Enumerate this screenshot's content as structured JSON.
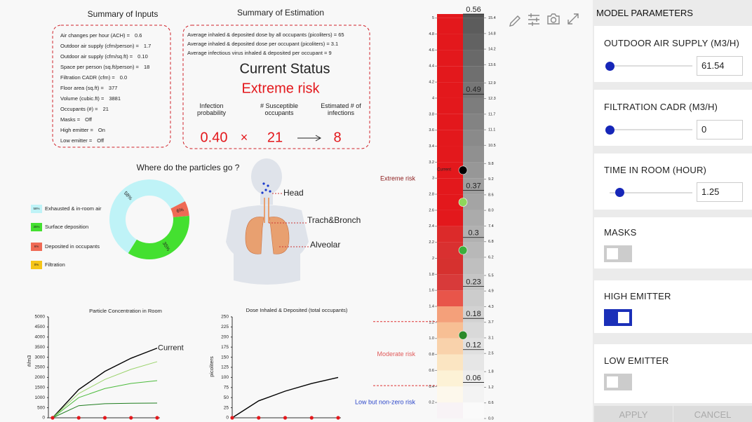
{
  "inputs": {
    "title": "Summary of Inputs",
    "items": [
      {
        "label": "Air changes per hour (ACH) =",
        "value": "0.6"
      },
      {
        "label": "Outdoor air supply (cfm/person) =",
        "value": "1.7"
      },
      {
        "label": "Outdoor air supply (cfm/sq.ft) =",
        "value": "0.10"
      },
      {
        "label": "Space per person (sq.ft/person) =",
        "value": "18"
      },
      {
        "label": "Filtration CADR (cfm) =",
        "value": "0.0"
      },
      {
        "label": "Floor area (sq.ft) =",
        "value": "377"
      },
      {
        "label": "Volume (cubic.ft) =",
        "value": "3881"
      },
      {
        "label": "Occupants (#) =",
        "value": "21"
      },
      {
        "label": "Masks =",
        "value": "Off"
      },
      {
        "label": "High emitter =",
        "value": "On"
      },
      {
        "label": "Low emitter =",
        "value": "Off"
      }
    ]
  },
  "estimation": {
    "title": "Summary of Estimation",
    "lines": [
      "Average inhaled & deposited dose by all occupants (picoliters) = 65",
      "Average inhaled & deposited dose per occupant (picoliters) = 3.1",
      "Average infectious virus inhaled & deposited per occupant = 9"
    ],
    "status_title": "Current Status",
    "status": "Extreme risk",
    "headers": [
      "Infection probability",
      "# Susceptible occupants",
      "Estimated # of infections"
    ],
    "probability": "0.40",
    "operator": "×",
    "occupants": "21",
    "infections": "8"
  },
  "diagram": {
    "labels": [
      "Head",
      "Trach&Bronch",
      "Alveolar"
    ]
  },
  "chart_data": [
    {
      "type": "pie",
      "title": "Where do the particles go ?",
      "hole": true,
      "categories": [
        "Exhausted & in-room air",
        "Surface deposition",
        "Deposited in occupants",
        "Filtration"
      ],
      "values": [
        58,
        35,
        6,
        0
      ],
      "value_labels": [
        "58%",
        "35%",
        "6%",
        "0%"
      ],
      "colors": [
        "#bff3f7",
        "#44e030",
        "#ef6a55",
        "#f5c518"
      ]
    },
    {
      "type": "line",
      "title": "Particle Concentration in Room",
      "ylabel": "#/m3",
      "categories": [
        null,
        null,
        null,
        null,
        null
      ],
      "ylim": [
        0,
        5000
      ],
      "yticks": [
        0,
        500,
        1000,
        1500,
        2000,
        2500,
        3000,
        3500,
        4000,
        4500,
        5000
      ],
      "series": [
        {
          "name": "Current",
          "color": "#000000",
          "values": [
            0,
            1400,
            2300,
            2950,
            3450
          ]
        },
        {
          "color": "#9ad36b",
          "values": [
            0,
            1200,
            1900,
            2400,
            2780
          ]
        },
        {
          "color": "#4cbb3c",
          "values": [
            0,
            1000,
            1450,
            1700,
            1840
          ]
        },
        {
          "color": "#1e7d1e",
          "values": [
            0,
            600,
            700,
            720,
            730
          ]
        }
      ]
    },
    {
      "type": "line",
      "title": "Dose Inhaled & Deposited (total occupants)",
      "ylabel": "picoliters",
      "categories": [
        null,
        null,
        null,
        null,
        null
      ],
      "ylim": [
        0,
        250
      ],
      "yticks": [
        0,
        25,
        50,
        75,
        100,
        125,
        150,
        175,
        200,
        225,
        250
      ],
      "series": [
        {
          "color": "#000000",
          "values": [
            0,
            42,
            66,
            85,
            100
          ]
        }
      ]
    },
    {
      "type": "risk-scale",
      "ylim": [
        0,
        5.05
      ],
      "yticks": [
        0.2,
        0.4,
        0.6,
        0.8,
        {
          "value": 1,
          "label": "1.0"
        },
        1.2,
        1.4,
        1.6,
        1.8,
        2,
        2.2,
        2.4,
        2.6,
        2.8,
        3,
        3.2,
        3.4,
        3.6,
        3.8,
        4,
        4.2,
        4.4,
        4.6,
        4.8,
        5
      ],
      "y2lim": [
        0,
        15.55
      ],
      "y2ticks": [
        {
          "value": 0,
          "label": "0.0"
        },
        0.6,
        1.2,
        1.8,
        2.5,
        3.1,
        3.7,
        4.3,
        4.9,
        5.5,
        6.2,
        6.8,
        7.4,
        {
          "value": 8,
          "label": "8.0"
        },
        8.6,
        9.2,
        9.8,
        10.5,
        11.1,
        11.7,
        12.3,
        12.9,
        13.6,
        14.2,
        14.8,
        15.4
      ],
      "cell_colors": [
        "#f8f3f6",
        "#fdf8ec",
        "#fdf2d6",
        "#fbe5c2",
        "#f9d2ab",
        "#f7bf94",
        "#f4a07a",
        "#e8554a",
        "#d83a3a",
        "#d6312f",
        "#d93030",
        "#dc2a2a",
        "#e3181c",
        "#e3181c",
        "#e3181c",
        "#e3181c",
        "#e3181c",
        "#e3181c",
        "#e3181c",
        "#e3181c",
        "#e3181c",
        "#e3181c",
        "#e3181c",
        "#e3181c",
        "#e3181c",
        "#e3181c"
      ],
      "contours": {
        "values": [
          0.56,
          0.49,
          0.37,
          0.3,
          0.23,
          0.18,
          0.12,
          0.06
        ],
        "at": [
          5.05,
          4.05,
          2.85,
          2.26,
          1.65,
          1.25,
          0.86,
          0.45
        ]
      },
      "points": {
        "values": [
          3.1,
          2.7,
          2.1,
          1.04
        ],
        "labels": [
          "Current",
          null,
          null,
          null
        ],
        "colors": [
          "#000000",
          "#8fd65a",
          "#3cae3c",
          "#2a8a2a"
        ]
      },
      "zones": [
        {
          "label": "Extreme risk",
          "value": 2.99,
          "color": "#8b1a1a"
        },
        {
          "label": "Moderate risk",
          "value": 0.8,
          "color": "#e05a5a"
        },
        {
          "label": "Low but non-zero risk",
          "value": 0.2,
          "color": "#2a45c8"
        }
      ],
      "thresholds": [
        1.21,
        0.41
      ]
    }
  ],
  "panel": {
    "title": "MODEL PARAMETERS",
    "sliders": [
      {
        "label": "OUTDOOR AIR SUPPLY (M3/H)",
        "value": "61.54"
      },
      {
        "label": "FILTRATION CADR (M3/H)",
        "value": "0"
      },
      {
        "label": "TIME IN ROOM (HOUR)",
        "value": "1.25"
      }
    ],
    "toggles": [
      {
        "label": "MASKS",
        "on": false
      },
      {
        "label": "HIGH EMITTER",
        "on": true
      },
      {
        "label": "LOW EMITTER",
        "on": false
      }
    ],
    "buttons": [
      "APPLY",
      "CANCEL"
    ]
  }
}
